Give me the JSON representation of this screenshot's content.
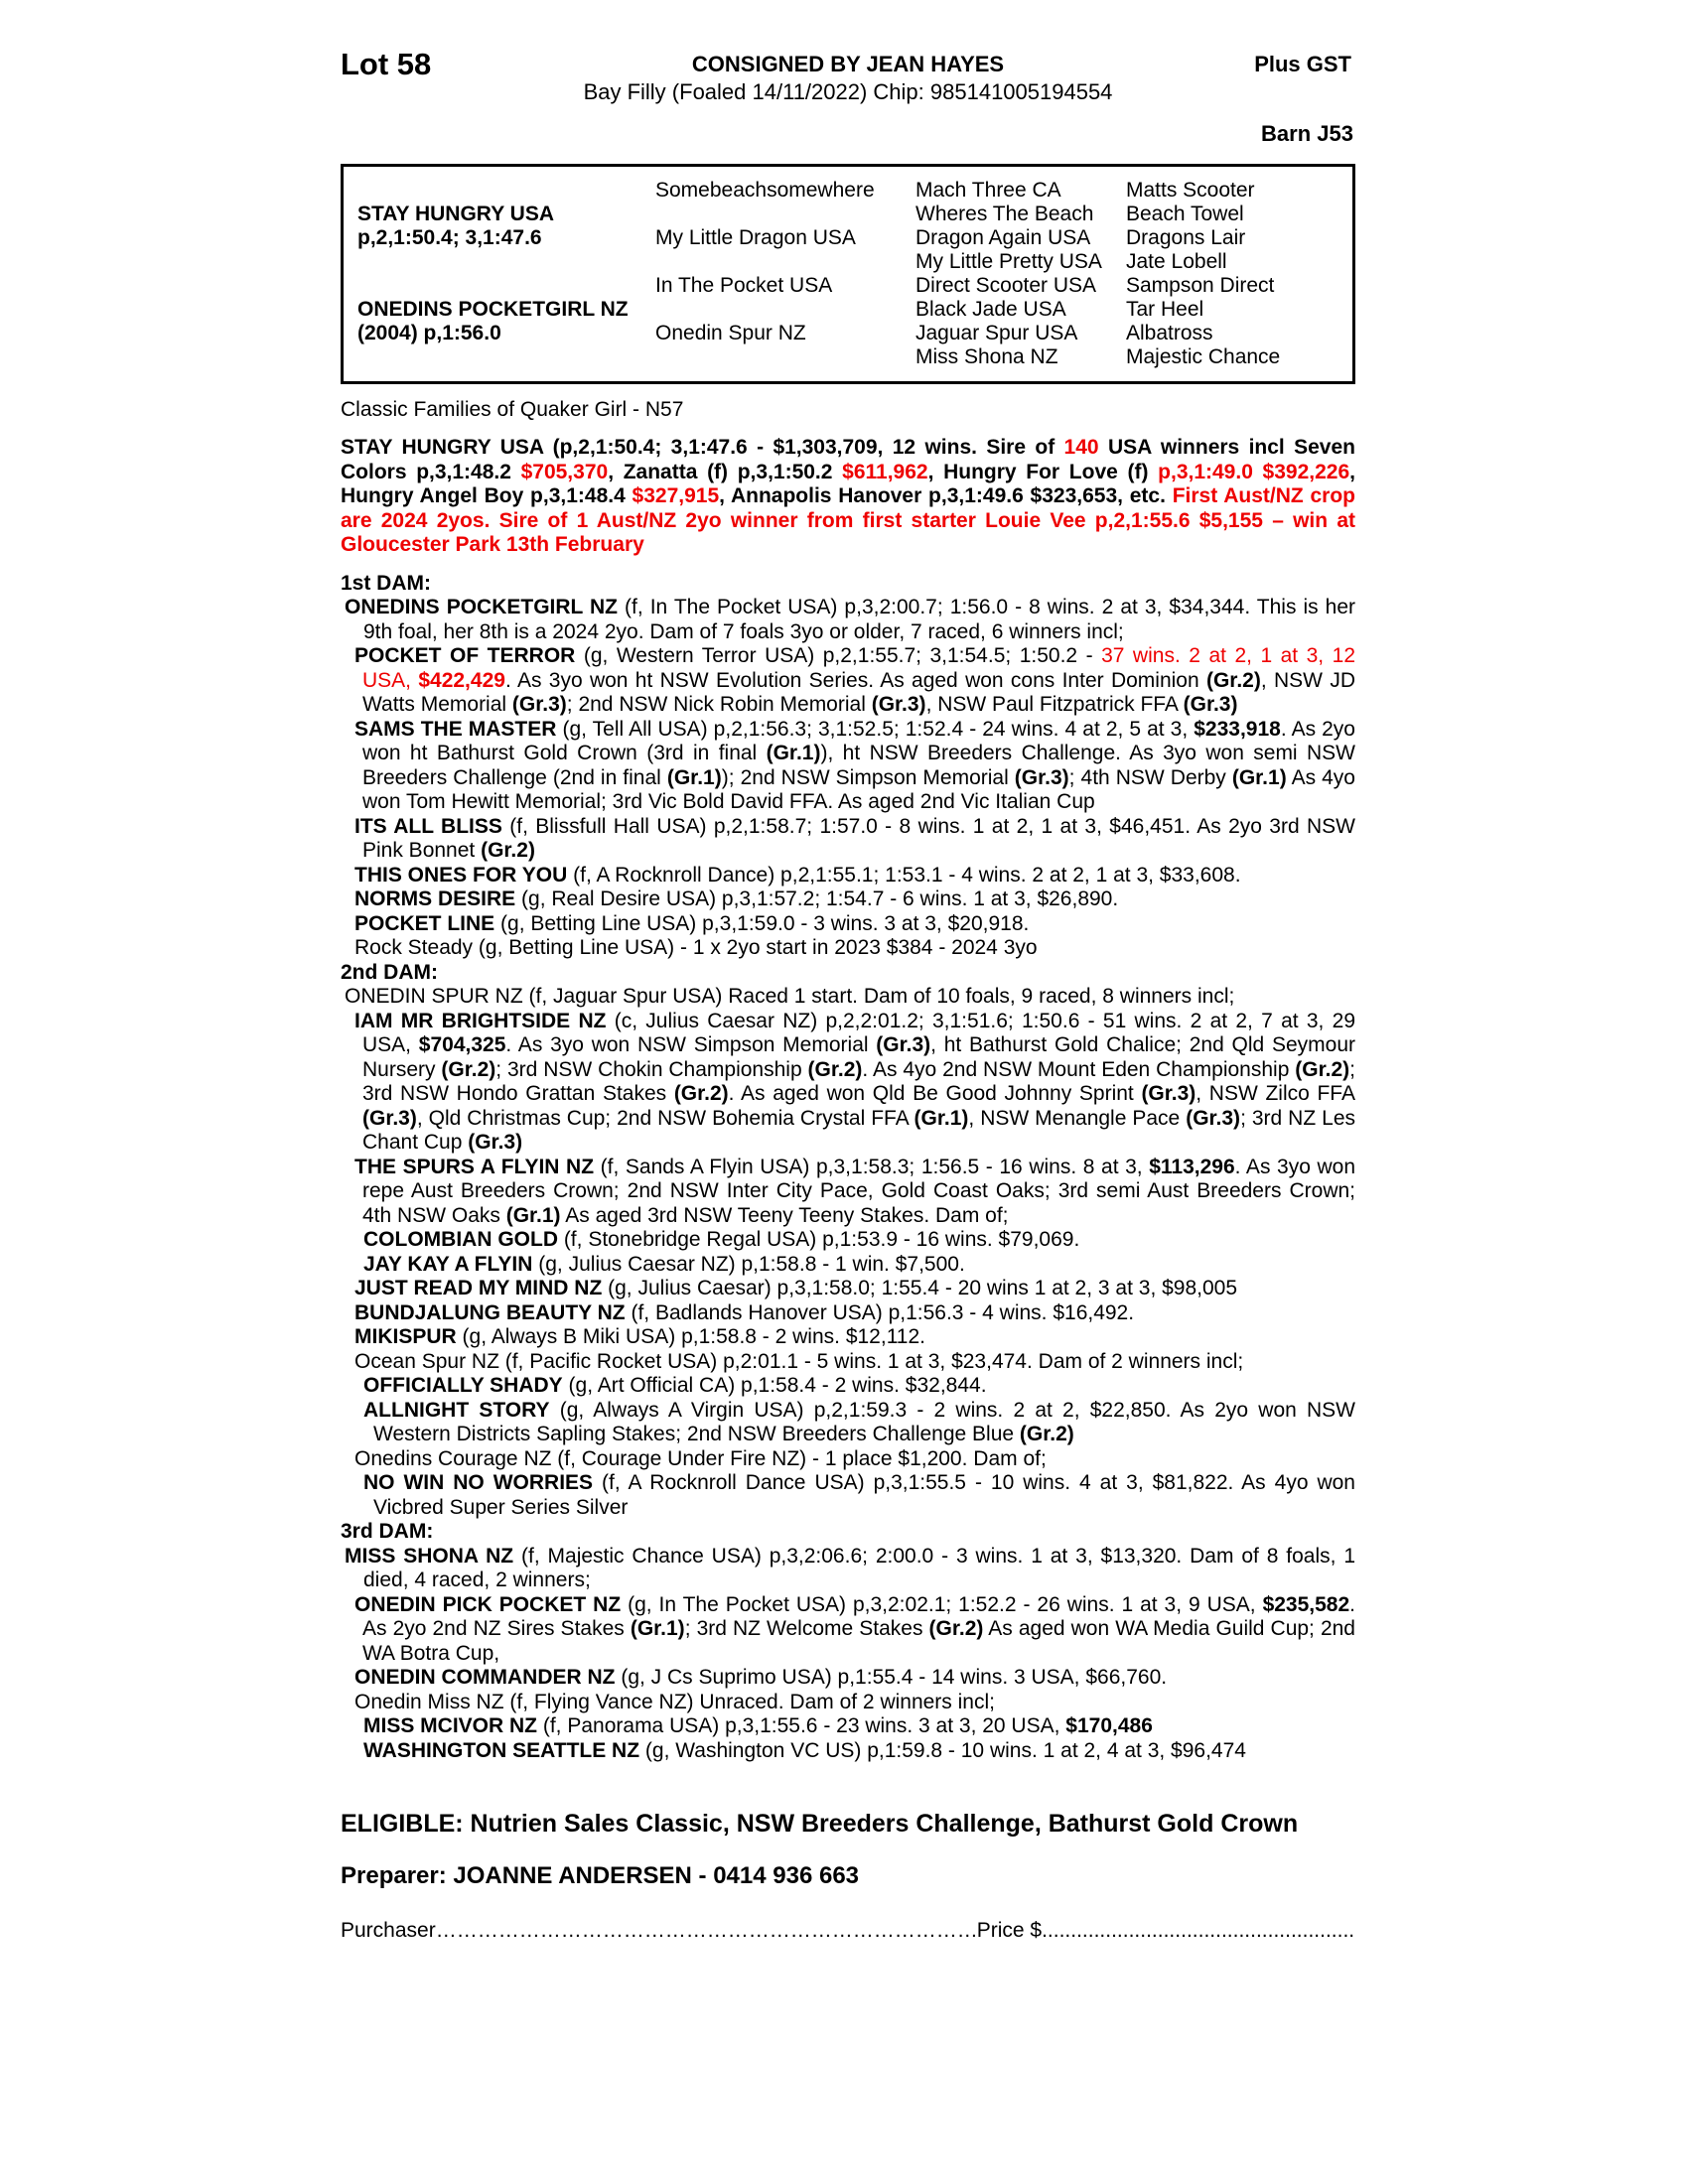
{
  "colors": {
    "accent_red": "#ee0000"
  },
  "header": {
    "lot": "Lot 58",
    "consigned_by": "CONSIGNED BY JEAN HAYES",
    "plus_gst": "Plus GST",
    "foal_line": "Bay Filly (Foaled 14/11/2022) Chip: 985141005194554",
    "barn": "Barn J53"
  },
  "pedigree_table": {
    "sire": {
      "name": "STAY HUNGRY USA",
      "record": "p,2,1:50.4; 3,1:47.6"
    },
    "dam": {
      "name": "ONEDINS POCKETGIRL NZ",
      "record": "(2004) p,1:56.0"
    },
    "gen2": [
      "Somebeachsomewhere",
      "My Little Dragon USA",
      "In The Pocket USA",
      "Onedin Spur NZ"
    ],
    "gen3": [
      "Mach Three CA",
      "Wheres The Beach",
      "Dragon Again USA",
      "My Little Pretty USA",
      "Direct Scooter USA",
      "Black Jade USA",
      "Jaguar Spur USA",
      "Miss Shona NZ"
    ],
    "gen4": [
      "Matts Scooter",
      "Beach Towel",
      "Dragons Lair",
      "Jate Lobell",
      "Sampson Direct",
      "Tar Heel",
      "Albatross",
      "Majestic Chance"
    ]
  },
  "family_line": "Classic Families of Quaker Girl - N57",
  "sire_paragraph": [
    {
      "t": "STAY HUNGRY USA (p,2,1:50.4; 3,1:47.6 - $1,303,709, 12 wins. Sire of "
    },
    {
      "t": "140",
      "r": true
    },
    {
      "t": " USA winners incl Seven Colors p,3,1:48.2 "
    },
    {
      "t": "$705,370",
      "r": true
    },
    {
      "t": ", Zanatta (f) p,3,1:50.2 "
    },
    {
      "t": "$611,962",
      "r": true
    },
    {
      "t": ", Hungry For Love (f) "
    },
    {
      "t": "p,3,1:49.0 $392,226",
      "r": true
    },
    {
      "t": ", Hungry Angel Boy p,3,1:48.4 "
    },
    {
      "t": "$327,915",
      "r": true
    },
    {
      "t": ", Annapolis Hanover p,3,1:49.6 $323,653, etc. "
    },
    {
      "t": "First Aust/NZ crop are 2024 2yos. Sire of 1 Aust/NZ 2yo winner from first starter Louie Vee p,2,1:55.6 $5,155 – win at Gloucester Park 13th February",
      "r": true
    }
  ],
  "dam_sections": [
    {
      "label": "1st DAM:",
      "entries": [
        {
          "level": 1,
          "runs": [
            {
              "t": "ONEDINS POCKETGIRL NZ",
              "b": true
            },
            {
              "t": " (f, In The Pocket USA) p,3,2:00.7; 1:56.0 - 8 wins. 2 at 3, $34,344. This is her 9th foal, her 8th is a 2024 2yo. Dam of 7 foals 3yo or older, 7 raced, 6 winners incl;"
            }
          ]
        },
        {
          "level": 2,
          "runs": [
            {
              "t": "POCKET OF TERROR",
              "b": true
            },
            {
              "t": " (g, Western Terror USA) p,2,1:55.7; 3,1:54.5; 1:50.2 - "
            },
            {
              "t": "37 wins. 2 at 2, 1 at 3, 12 USA, ",
              "r": true
            },
            {
              "t": "$422,429",
              "r": true,
              "b": true
            },
            {
              "t": ". As 3yo won ht NSW Evolution Series. As aged won cons Inter Dominion "
            },
            {
              "t": "(Gr.2)",
              "b": true
            },
            {
              "t": ", NSW JD Watts Memorial "
            },
            {
              "t": "(Gr.3)",
              "b": true
            },
            {
              "t": "; 2nd NSW Nick Robin Memorial "
            },
            {
              "t": "(Gr.3)",
              "b": true
            },
            {
              "t": ", NSW Paul Fitzpatrick FFA "
            },
            {
              "t": "(Gr.3)",
              "b": true
            }
          ]
        },
        {
          "level": 2,
          "runs": [
            {
              "t": "SAMS THE MASTER",
              "b": true
            },
            {
              "t": " (g, Tell All USA) p,2,1:56.3; 3,1:52.5; 1:52.4 - 24 wins. 4 at 2, 5 at 3, "
            },
            {
              "t": "$233,918",
              "b": true
            },
            {
              "t": ". As 2yo won ht Bathurst Gold Crown (3rd in final "
            },
            {
              "t": "(Gr.1)",
              "b": true
            },
            {
              "t": "), ht NSW Breeders Challenge. As 3yo won semi NSW Breeders Challenge (2nd in final "
            },
            {
              "t": "(Gr.1)",
              "b": true
            },
            {
              "t": "); 2nd NSW Simpson Memorial "
            },
            {
              "t": "(Gr.3)",
              "b": true
            },
            {
              "t": "; 4th NSW Derby "
            },
            {
              "t": "(Gr.1)",
              "b": true
            },
            {
              "t": " As 4yo won Tom Hewitt Memorial; 3rd Vic Bold David FFA. As aged 2nd Vic Italian Cup"
            }
          ]
        },
        {
          "level": 2,
          "runs": [
            {
              "t": "ITS ALL BLISS",
              "b": true
            },
            {
              "t": " (f, Blissfull Hall USA) p,2,1:58.7; 1:57.0 - 8 wins. 1 at 2, 1 at 3, $46,451. As 2yo 3rd NSW Pink Bonnet "
            },
            {
              "t": "(Gr.2)",
              "b": true
            }
          ]
        },
        {
          "level": 2,
          "runs": [
            {
              "t": "THIS ONES FOR YOU",
              "b": true
            },
            {
              "t": " (f, A Rocknroll Dance) p,2,1:55.1; 1:53.1 - 4 wins. 2 at 2, 1 at 3, $33,608."
            }
          ]
        },
        {
          "level": 2,
          "runs": [
            {
              "t": "NORMS DESIRE",
              "b": true
            },
            {
              "t": " (g, Real Desire USA) p,3,1:57.2; 1:54.7 - 6 wins. 1 at 3, $26,890."
            }
          ]
        },
        {
          "level": 2,
          "runs": [
            {
              "t": "POCKET LINE",
              "b": true
            },
            {
              "t": " (g, Betting Line USA) p,3,1:59.0 - 3 wins. 3 at 3, $20,918."
            }
          ]
        },
        {
          "level": 2,
          "runs": [
            {
              "t": "Rock Steady (g, Betting Line USA) - 1 x 2yo start in 2023 $384 - 2024 3yo"
            }
          ]
        }
      ]
    },
    {
      "label": "2nd DAM:",
      "entries": [
        {
          "level": 1,
          "runs": [
            {
              "t": "ONEDIN SPUR NZ (f, Jaguar Spur USA) Raced 1 start. Dam of 10 foals, 9 raced, 8 winners incl;"
            }
          ]
        },
        {
          "level": 2,
          "runs": [
            {
              "t": "IAM MR BRIGHTSIDE NZ",
              "b": true
            },
            {
              "t": " (c, Julius Caesar NZ) p,2,2:01.2; 3,1:51.6; 1:50.6 - 51 wins. 2 at 2, 7 at 3, 29 USA, "
            },
            {
              "t": "$704,325",
              "b": true
            },
            {
              "t": ". As 3yo won NSW Simpson Memorial "
            },
            {
              "t": "(Gr.3)",
              "b": true
            },
            {
              "t": ", ht Bathurst Gold Chalice; 2nd Qld Seymour Nursery "
            },
            {
              "t": "(Gr.2)",
              "b": true
            },
            {
              "t": "; 3rd NSW Chokin Championship "
            },
            {
              "t": "(Gr.2)",
              "b": true
            },
            {
              "t": ". As 4yo 2nd NSW Mount Eden Championship "
            },
            {
              "t": "(Gr.2)",
              "b": true
            },
            {
              "t": "; 3rd NSW Hondo Grattan Stakes "
            },
            {
              "t": "(Gr.2)",
              "b": true
            },
            {
              "t": ". As aged won Qld Be Good Johnny Sprint "
            },
            {
              "t": "(Gr.3)",
              "b": true
            },
            {
              "t": ", NSW Zilco FFA "
            },
            {
              "t": "(Gr.3)",
              "b": true
            },
            {
              "t": ", Qld Christmas Cup; 2nd NSW Bohemia Crystal FFA "
            },
            {
              "t": "(Gr.1)",
              "b": true
            },
            {
              "t": ", NSW Menangle Pace "
            },
            {
              "t": "(Gr.3)",
              "b": true
            },
            {
              "t": "; 3rd NZ Les Chant Cup "
            },
            {
              "t": "(Gr.3)",
              "b": true
            }
          ]
        },
        {
          "level": 2,
          "runs": [
            {
              "t": "THE SPURS A FLYIN NZ",
              "b": true
            },
            {
              "t": " (f, Sands A Flyin USA) p,3,1:58.3; 1:56.5 - 16 wins. 8 at 3, "
            },
            {
              "t": "$113,296",
              "b": true
            },
            {
              "t": ". As 3yo won repe Aust Breeders Crown; 2nd NSW Inter City Pace, Gold Coast Oaks; 3rd semi Aust Breeders Crown; 4th NSW Oaks "
            },
            {
              "t": "(Gr.1)",
              "b": true
            },
            {
              "t": " As aged 3rd NSW Teeny Teeny Stakes. Dam of;"
            }
          ]
        },
        {
          "level": 3,
          "runs": [
            {
              "t": "COLOMBIAN GOLD",
              "b": true
            },
            {
              "t": " (f, Stonebridge Regal USA) p,1:53.9 - 16 wins. $79,069."
            }
          ]
        },
        {
          "level": 3,
          "runs": [
            {
              "t": "JAY KAY A FLYIN",
              "b": true
            },
            {
              "t": " (g, Julius Caesar NZ) p,1:58.8 - 1 win. $7,500."
            }
          ]
        },
        {
          "level": 2,
          "runs": [
            {
              "t": "JUST READ MY MIND NZ",
              "b": true
            },
            {
              "t": " (g, Julius Caesar) p,3,1:58.0; 1:55.4 - 20 wins 1 at 2, 3 at 3, $98,005"
            }
          ]
        },
        {
          "level": 2,
          "runs": [
            {
              "t": "BUNDJALUNG BEAUTY NZ",
              "b": true
            },
            {
              "t": " (f, Badlands Hanover USA) p,1:56.3 - 4 wins. $16,492."
            }
          ]
        },
        {
          "level": 2,
          "runs": [
            {
              "t": "MIKISPUR",
              "b": true
            },
            {
              "t": " (g, Always B Miki USA) p,1:58.8 - 2 wins. $12,112."
            }
          ]
        },
        {
          "level": 2,
          "runs": [
            {
              "t": "Ocean Spur NZ (f, Pacific Rocket USA) p,2:01.1 - 5 wins. 1 at 3, $23,474. Dam of 2 winners incl;"
            }
          ]
        },
        {
          "level": 3,
          "runs": [
            {
              "t": "OFFICIALLY SHADY",
              "b": true
            },
            {
              "t": " (g, Art Official CA) p,1:58.4 - 2 wins. $32,844."
            }
          ]
        },
        {
          "level": 3,
          "runs": [
            {
              "t": "ALLNIGHT STORY",
              "b": true
            },
            {
              "t": " (g, Always A Virgin USA) p,2,1:59.3 - 2 wins. 2 at 2, $22,850. As 2yo won NSW Western Districts Sapling Stakes; 2nd NSW Breeders Challenge Blue "
            },
            {
              "t": "(Gr.2)",
              "b": true
            }
          ]
        },
        {
          "level": 2,
          "runs": [
            {
              "t": "Onedins Courage NZ (f, Courage Under Fire NZ) - 1 place $1,200. Dam of;"
            }
          ]
        },
        {
          "level": 3,
          "runs": [
            {
              "t": "NO WIN NO WORRIES",
              "b": true
            },
            {
              "t": " (f, A Rocknroll Dance USA) p,3,1:55.5 - 10 wins. 4 at 3, $81,822. As 4yo won Vicbred Super Series Silver"
            }
          ]
        }
      ]
    },
    {
      "label": "3rd DAM:",
      "entries": [
        {
          "level": 1,
          "runs": [
            {
              "t": "MISS SHONA NZ",
              "b": true
            },
            {
              "t": " (f, Majestic Chance USA) p,3,2:06.6; 2:00.0 - 3 wins. 1 at 3, $13,320. Dam of 8 foals, 1 died, 4 raced, 2 winners;"
            }
          ]
        },
        {
          "level": 2,
          "runs": [
            {
              "t": "ONEDIN PICK POCKET NZ",
              "b": true
            },
            {
              "t": " (g, In The Pocket USA) p,3,2:02.1; 1:52.2 - 26 wins. 1 at 3, 9 USA, "
            },
            {
              "t": "$235,582",
              "b": true
            },
            {
              "t": ". As 2yo 2nd NZ Sires Stakes "
            },
            {
              "t": "(Gr.1)",
              "b": true
            },
            {
              "t": "; 3rd NZ Welcome Stakes "
            },
            {
              "t": "(Gr.2)",
              "b": true
            },
            {
              "t": " As aged won WA Media Guild Cup; 2nd WA Botra Cup,"
            }
          ]
        },
        {
          "level": 2,
          "runs": [
            {
              "t": "ONEDIN COMMANDER NZ",
              "b": true
            },
            {
              "t": " (g, J Cs Suprimo USA) p,1:55.4 - 14 wins. 3 USA, $66,760."
            }
          ]
        },
        {
          "level": 2,
          "runs": [
            {
              "t": "Onedin Miss NZ (f, Flying Vance NZ) Unraced. Dam of 2 winners incl;"
            }
          ]
        },
        {
          "level": 3,
          "runs": [
            {
              "t": "MISS MCIVOR NZ",
              "b": true
            },
            {
              "t": " (f, Panorama USA) p,3,1:55.6 - 23 wins. 3 at 3, 20 USA, "
            },
            {
              "t": "$170,486",
              "b": true
            }
          ]
        },
        {
          "level": 3,
          "runs": [
            {
              "t": "WASHINGTON SEATTLE NZ",
              "b": true
            },
            {
              "t": " (g, Washington VC US) p,1:59.8 - 10 wins. 1 at 2, 4 at 3, $96,474"
            }
          ]
        }
      ]
    }
  ],
  "footer": {
    "eligible": "ELIGIBLE: Nutrien Sales Classic, NSW Breeders Challenge, Bathurst Gold Crown",
    "preparer": "Preparer: JOANNE ANDERSEN - 0414 936 663",
    "purchaser_label": "Purchaser",
    "purchaser_dots": "……………………………………………………………………………………………………………………………",
    "price_label": "Price $",
    "price_dots": "............................................................................"
  }
}
